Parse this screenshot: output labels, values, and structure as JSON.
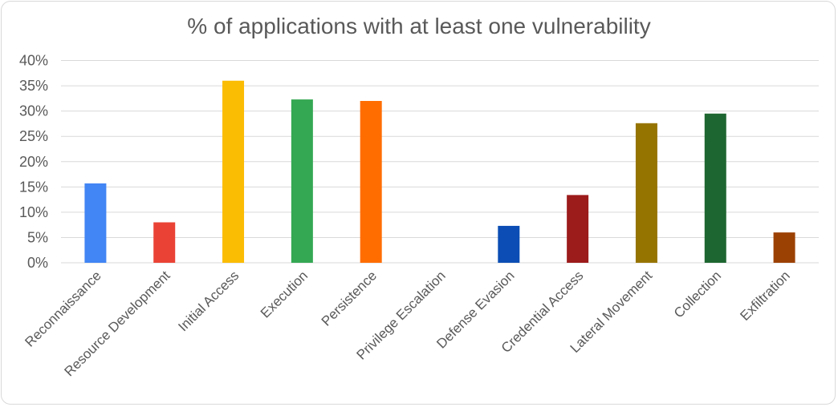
{
  "chart_data": {
    "type": "bar",
    "title": "% of applications with at least one vulnerability",
    "xlabel": "",
    "ylabel": "",
    "ylim": [
      0,
      40
    ],
    "yticks": [
      "0%",
      "5%",
      "10%",
      "15%",
      "20%",
      "25%",
      "30%",
      "35%",
      "40%"
    ],
    "grid": true,
    "legend": "none",
    "categories": [
      "Reconnaissance",
      "Resource Development",
      "Initial Access",
      "Execution",
      "Persistence",
      "Privilege Escalation",
      "Defense Evasion",
      "Credential Access",
      "Lateral Movement",
      "Collection",
      "Exfiltration"
    ],
    "values": [
      15.7,
      8.0,
      36.0,
      32.3,
      32.0,
      0,
      7.3,
      13.4,
      27.6,
      29.5,
      6.0
    ],
    "colors": [
      "#4285f4",
      "#ea4335",
      "#fbbc04",
      "#34a853",
      "#ff6d01",
      "#46bdc6",
      "#0b4db4",
      "#9c1b1b",
      "#967400",
      "#1e6631",
      "#9c4104"
    ]
  }
}
